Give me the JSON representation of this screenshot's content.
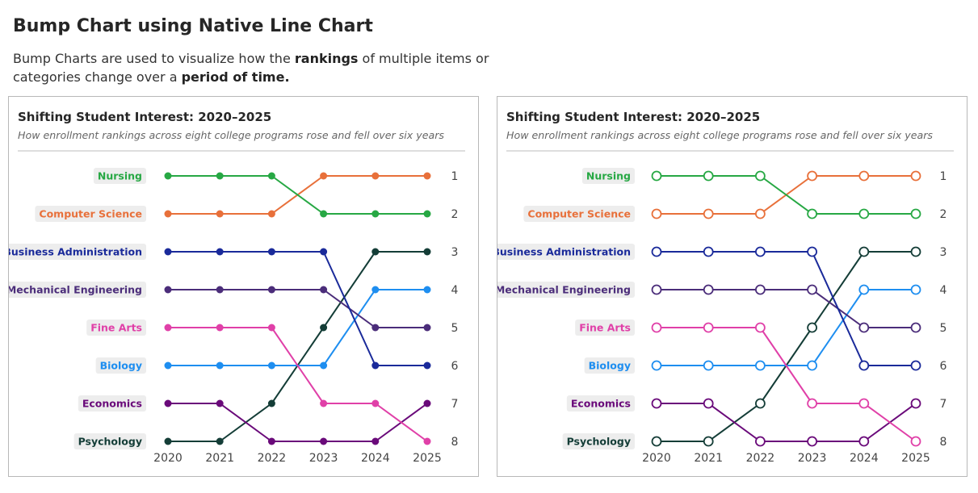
{
  "header": {
    "title": "Bump Chart using Native Line Chart",
    "desc_1": "Bump Charts are used to visualize how the ",
    "desc_bold_1": "rankings",
    "desc_2": " of multiple items or categories change over a ",
    "desc_bold_2": "period of time."
  },
  "chart_data": [
    {
      "type": "line",
      "marker_style": "filled",
      "title": "Shifting Student Interest: 2020–2025",
      "subtitle": "How enrollment rankings across eight college programs rose and fell over six years",
      "x": [
        "2020",
        "2021",
        "2022",
        "2023",
        "2024",
        "2025"
      ],
      "ylim": [
        1,
        8
      ],
      "y_inverted": true,
      "y_ticks": [
        "1",
        "2",
        "3",
        "4",
        "5",
        "6",
        "7",
        "8"
      ],
      "grid": false,
      "series": [
        {
          "name": "Nursing",
          "color": "#27a844",
          "values": [
            1,
            1,
            1,
            2,
            2,
            2
          ]
        },
        {
          "name": "Computer Science",
          "color": "#e8703a",
          "values": [
            2,
            2,
            2,
            1,
            1,
            1
          ]
        },
        {
          "name": "Business Administration",
          "color": "#1a2a9a",
          "values": [
            3,
            3,
            3,
            3,
            6,
            6
          ]
        },
        {
          "name": "Mechanical Engineering",
          "color": "#4b2d7a",
          "values": [
            4,
            4,
            4,
            4,
            5,
            5
          ]
        },
        {
          "name": "Fine Arts",
          "color": "#e040a8",
          "values": [
            5,
            5,
            5,
            7,
            7,
            8
          ]
        },
        {
          "name": "Biology",
          "color": "#1e8ef0",
          "values": [
            6,
            6,
            6,
            6,
            4,
            4
          ]
        },
        {
          "name": "Economics",
          "color": "#6a0a7a",
          "values": [
            7,
            7,
            8,
            8,
            8,
            7
          ]
        },
        {
          "name": "Psychology",
          "color": "#143d37",
          "values": [
            8,
            8,
            7,
            5,
            3,
            3
          ]
        }
      ]
    },
    {
      "type": "line",
      "marker_style": "hollow",
      "title": "Shifting Student Interest: 2020–2025",
      "subtitle": "How enrollment rankings across eight college programs rose and fell over six years",
      "x": [
        "2020",
        "2021",
        "2022",
        "2023",
        "2024",
        "2025"
      ],
      "ylim": [
        1,
        8
      ],
      "y_inverted": true,
      "y_ticks": [
        "1",
        "2",
        "3",
        "4",
        "5",
        "6",
        "7",
        "8"
      ],
      "grid": false,
      "series": [
        {
          "name": "Nursing",
          "color": "#27a844",
          "values": [
            1,
            1,
            1,
            2,
            2,
            2
          ]
        },
        {
          "name": "Computer Science",
          "color": "#e8703a",
          "values": [
            2,
            2,
            2,
            1,
            1,
            1
          ]
        },
        {
          "name": "Business Administration",
          "color": "#1a2a9a",
          "values": [
            3,
            3,
            3,
            3,
            6,
            6
          ]
        },
        {
          "name": "Mechanical Engineering",
          "color": "#4b2d7a",
          "values": [
            4,
            4,
            4,
            4,
            5,
            5
          ]
        },
        {
          "name": "Fine Arts",
          "color": "#e040a8",
          "values": [
            5,
            5,
            5,
            7,
            7,
            8
          ]
        },
        {
          "name": "Biology",
          "color": "#1e8ef0",
          "values": [
            6,
            6,
            6,
            6,
            4,
            4
          ]
        },
        {
          "name": "Economics",
          "color": "#6a0a7a",
          "values": [
            7,
            7,
            8,
            8,
            8,
            7
          ]
        },
        {
          "name": "Psychology",
          "color": "#143d37",
          "values": [
            8,
            8,
            7,
            5,
            3,
            3
          ]
        }
      ]
    }
  ]
}
